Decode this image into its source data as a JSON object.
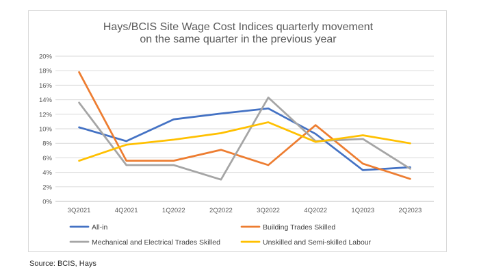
{
  "source": "Source: BCIS, Hays",
  "chart_data": {
    "type": "line",
    "title": "Hays/BCIS Site Wage Cost Indices quarterly movement on the same quarter in the previous year",
    "title_lines": [
      "Hays/BCIS Site Wage Cost Indices quarterly movement",
      "on the same quarter in the previous year"
    ],
    "xlabel": "",
    "ylabel": "",
    "categories": [
      "3Q2021",
      "4Q2021",
      "1Q2022",
      "2Q2022",
      "3Q2022",
      "4Q2022",
      "1Q2023",
      "2Q2023"
    ],
    "ylim": [
      0,
      20
    ],
    "y_ticks": [
      "0%",
      "2%",
      "4%",
      "6%",
      "8%",
      "10%",
      "12%",
      "14%",
      "16%",
      "18%",
      "20%"
    ],
    "grid": true,
    "legend_position": "bottom",
    "series": [
      {
        "name": "All-in",
        "color": "#4472C4",
        "values": [
          10.2,
          8.3,
          11.3,
          12.1,
          12.8,
          9.3,
          4.3,
          4.7
        ]
      },
      {
        "name": "Building Trades Skilled",
        "color": "#ED7D31",
        "values": [
          17.8,
          5.6,
          5.6,
          7.1,
          5.0,
          10.5,
          5.2,
          3.1
        ]
      },
      {
        "name": "Mechanical and Electrical Trades Skilled",
        "color": "#A5A5A5",
        "values": [
          13.6,
          5.0,
          5.0,
          3.0,
          14.3,
          8.3,
          8.6,
          4.5
        ]
      },
      {
        "name": "Unskilled and Semi-skilled Labour",
        "color": "#FFC000",
        "values": [
          5.6,
          7.8,
          8.5,
          9.4,
          10.9,
          8.2,
          9.1,
          8.0
        ]
      }
    ]
  }
}
